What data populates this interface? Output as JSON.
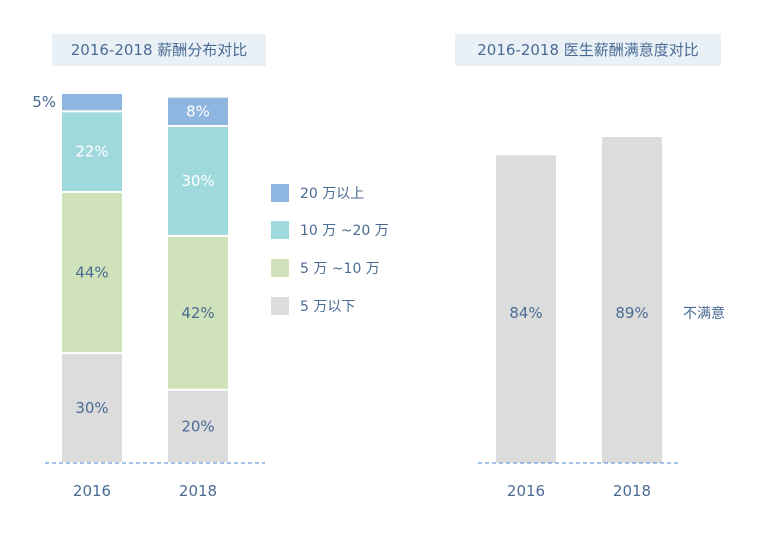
{
  "titles": {
    "left": "2016-2018 薪酬分布对比",
    "right": "2016-2018 医生薪酬满意度对比"
  },
  "chart_data": [
    {
      "type": "bar",
      "stacked": true,
      "title": "2016-2018 薪酬分布对比",
      "categories": [
        "2016",
        "2018"
      ],
      "ylim": [
        0,
        100
      ],
      "series": [
        {
          "name": "5 万以下",
          "values": [
            30,
            20
          ],
          "color": "#dcdcdc",
          "label_style": "dark"
        },
        {
          "name": "5 万 ~10 万",
          "values": [
            44,
            42
          ],
          "color": "#cfe2b9",
          "label_style": "dark"
        },
        {
          "name": "10 万 ~20 万",
          "values": [
            22,
            30
          ],
          "color": "#9fd9dc",
          "label_style": "light"
        },
        {
          "name": "20 万以上",
          "values": [
            5,
            8
          ],
          "color": "#8fb6e0",
          "label_style": "light"
        }
      ],
      "value_labels": [
        [
          "30%",
          "20%"
        ],
        [
          "44%",
          "42%"
        ],
        [
          "22%",
          "30%"
        ],
        [
          "5%",
          "8%"
        ]
      ],
      "legend_order": [
        3,
        2,
        1,
        0
      ]
    },
    {
      "type": "bar",
      "title": "2016-2018 医生薪酬满意度对比",
      "categories": [
        "2016",
        "2018"
      ],
      "ylim": [
        0,
        100
      ],
      "series": [
        {
          "name": "不满意",
          "values": [
            84,
            89
          ],
          "color": "#dcdcdc"
        }
      ],
      "value_labels": [
        "84%",
        "89%"
      ]
    }
  ],
  "colors": {
    "text": "#4a6b94",
    "baseline": "#6f9fd6"
  }
}
